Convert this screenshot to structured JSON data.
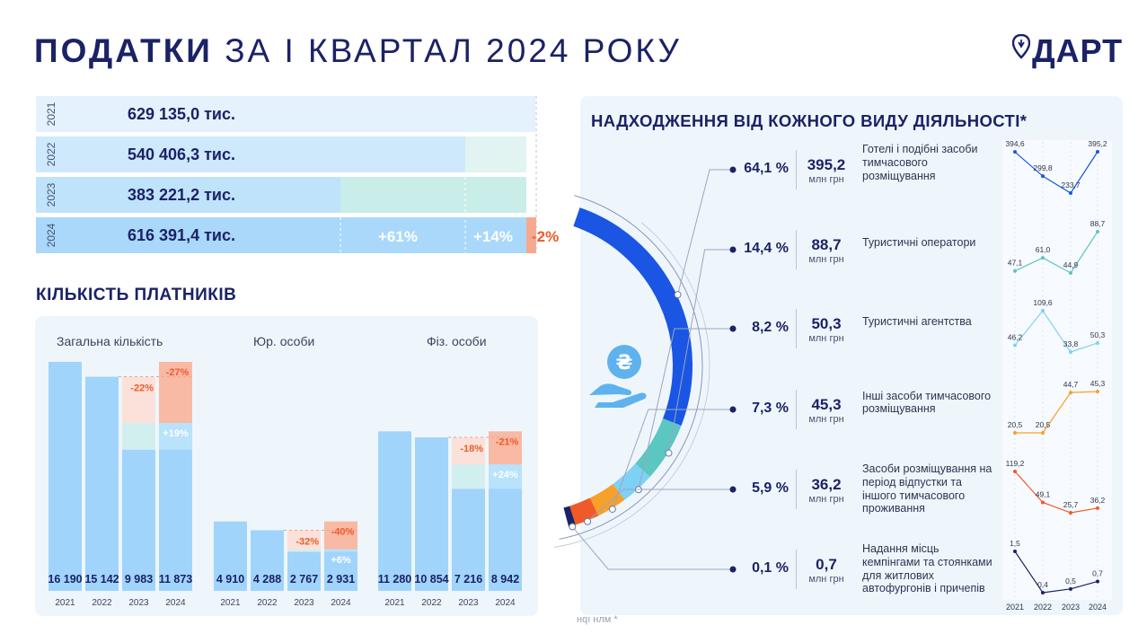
{
  "header": {
    "title_bold": "ПОДАТКИ",
    "title_rest": "ЗА І КВАРТАЛ 2024 РОКУ",
    "logo": "ДАРТ"
  },
  "tax_rows": [
    {
      "year": "2021",
      "value": "629 135,0  тис.",
      "amount": 629135.0
    },
    {
      "year": "2022",
      "value": "540 406,3  тис.",
      "amount": 540406.3
    },
    {
      "year": "2023",
      "value": "383 221,2  тис.",
      "amount": 383221.2
    },
    {
      "year": "2024",
      "value": "616 391,4  тис.",
      "amount": 616391.4
    }
  ],
  "tax_changes": {
    "vs2023": "+61%",
    "vs2022": "+14%",
    "vs2021": "-2%"
  },
  "payers": {
    "title": "КІЛЬКІСТЬ ПЛАТНИКІВ",
    "groups": [
      {
        "title": "Загальна кількість",
        "years": [
          "2021",
          "2022",
          "2023",
          "2024"
        ],
        "values": [
          "16 190",
          "15 142",
          "9 983",
          "11 873"
        ],
        "changes": [
          "-22%",
          "-27%",
          "+19%"
        ]
      },
      {
        "title": "Юр. особи",
        "years": [
          "2021",
          "2022",
          "2023",
          "2024"
        ],
        "values": [
          "4 910",
          "4 288",
          "2 767",
          "2 931"
        ],
        "changes": [
          "-32%",
          "-40%",
          "+6%"
        ]
      },
      {
        "title": "Фіз. особи",
        "years": [
          "2021",
          "2022",
          "2023",
          "2024"
        ],
        "values": [
          "11 280",
          "10 854",
          "7 216",
          "8 942"
        ],
        "changes": [
          "-18%",
          "-21%",
          "+24%"
        ]
      }
    ]
  },
  "activities": {
    "title": "НАДХОДЖЕННЯ ВІД КОЖНОГО ВИДУ ДІЯЛЬНОСТІ*",
    "unit": "млн грн",
    "footnote": "нqı нлм *",
    "years": [
      "2021",
      "2022",
      "2023",
      "2024"
    ],
    "items": [
      {
        "share": "64,1 %",
        "amount": "395,2",
        "name": "Готелі і подібні засоби тимчасового розміщування",
        "color": "#1a55e3",
        "spark": [
          "394,6",
          "299,8",
          "233,7",
          "395,2"
        ]
      },
      {
        "share": "14,4 %",
        "amount": "88,7",
        "name": "Туристичні оператори",
        "color": "#5cc6c0",
        "spark": [
          "47,1",
          "61,0",
          "44,9",
          "88,7"
        ]
      },
      {
        "share": "8,2 %",
        "amount": "50,3",
        "name": "Туристичні агентства",
        "color": "#7fd0f5",
        "spark": [
          "46,2",
          "109,6",
          "33,8",
          "50,3"
        ]
      },
      {
        "share": "7,3 %",
        "amount": "45,3",
        "name": "Інші засоби тимчасового розміщування",
        "color": "#f7a02a",
        "spark": [
          "20,5",
          "20,5",
          "44,7",
          "45,3"
        ]
      },
      {
        "share": "5,9 %",
        "amount": "36,2",
        "name": "Засоби розміщування на період відпустки та іншого тимчасового проживання",
        "color": "#f05a28",
        "spark": [
          "119,2",
          "49,1",
          "25,7",
          "36,2"
        ]
      },
      {
        "share": "0,1 %",
        "amount": "0,7",
        "name": "Надання місць кемпінгами та стоянками для житлових автофургонів і причепів",
        "color": "#1b2266",
        "spark": [
          "1,5",
          "0,4",
          "0,5",
          "0,7"
        ]
      }
    ]
  },
  "chart_data": [
    {
      "type": "bar",
      "title": "",
      "categories": [
        "2021",
        "2022",
        "2023",
        "2024"
      ],
      "values": [
        629135.0,
        540406.3,
        383221.2,
        616391.4
      ]
    },
    {
      "type": "bar",
      "title": "Загальна кількість",
      "categories": [
        "2021",
        "2022",
        "2023",
        "2024"
      ],
      "values": [
        16190,
        15142,
        9983,
        11873
      ]
    },
    {
      "type": "bar",
      "title": "Юр. особи",
      "categories": [
        "2021",
        "2022",
        "2023",
        "2024"
      ],
      "values": [
        4910,
        4288,
        2767,
        2931
      ]
    },
    {
      "type": "bar",
      "title": "Фіз. особи",
      "categories": [
        "2021",
        "2022",
        "2023",
        "2024"
      ],
      "values": [
        11280,
        10854,
        7216,
        8942
      ]
    },
    {
      "type": "pie",
      "title": "НАДХОДЖЕННЯ ВІД КОЖНОГО ВИДУ ДІЯЛЬНОСТІ*",
      "categories": [
        "Готелі і подібні засоби тимчасового розміщування",
        "Туристичні оператори",
        "Туристичні агентства",
        "Інші засоби тимчасового розміщування",
        "Засоби розміщування на період відпустки та іншого тимчасового проживання",
        "Надання місць кемпінгами та стоянками для житлових автофургонів і причепів"
      ],
      "values": [
        64.1,
        14.4,
        8.2,
        7.3,
        5.9,
        0.1
      ]
    },
    {
      "type": "line",
      "x": [
        "2021",
        "2022",
        "2023",
        "2024"
      ],
      "series": [
        {
          "values": [
            394.6,
            299.8,
            233.7,
            395.2
          ]
        },
        {
          "values": [
            47.1,
            61.0,
            44.9,
            88.7
          ]
        },
        {
          "values": [
            46.2,
            109.6,
            33.8,
            50.3
          ]
        },
        {
          "values": [
            20.5,
            20.5,
            44.7,
            45.3
          ]
        },
        {
          "values": [
            119.2,
            49.1,
            25.7,
            36.2
          ]
        },
        {
          "values": [
            1.5,
            0.4,
            0.5,
            0.7
          ]
        }
      ]
    }
  ]
}
